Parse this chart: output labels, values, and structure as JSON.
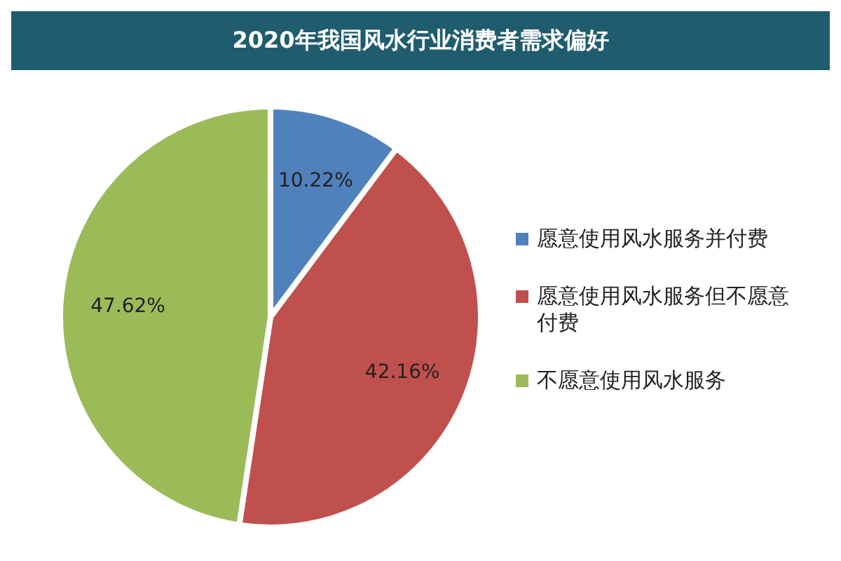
{
  "chart_data": {
    "type": "pie",
    "title": "2020年我国风水行业消费者需求偏好",
    "categories": [
      "愿意使用风水服务并付费",
      "愿意使用风水服务但不愿意付费",
      "不愿意使用风水服务"
    ],
    "values": [
      10.22,
      42.16,
      47.62
    ],
    "colors": [
      "#4f81bd",
      "#c0504d",
      "#9bbb59"
    ],
    "value_labels": [
      "10.22%",
      "42.16%",
      "47.62%"
    ],
    "legend": "right"
  }
}
